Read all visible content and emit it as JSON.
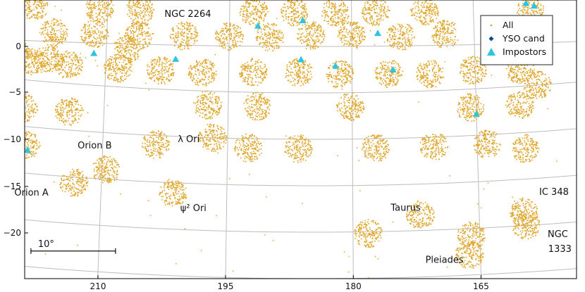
{
  "chart_data": {
    "type": "scatter",
    "title": "",
    "xlabel": "",
    "ylabel": "",
    "xlim": [
      222,
      154
    ],
    "ylim": [
      -25,
      4.5
    ],
    "x_reversed": true,
    "grid": true,
    "x_ticks": [
      {
        "value": 210,
        "label": "210"
      },
      {
        "value": 195,
        "label": "195"
      },
      {
        "value": 180,
        "label": "180"
      },
      {
        "value": 165,
        "label": "165"
      }
    ],
    "y_ticks": [
      {
        "value": 0,
        "label": "0"
      },
      {
        "value": -5,
        "label": "−5"
      },
      {
        "value": -10,
        "label": "−10"
      },
      {
        "value": -15,
        "label": "−15"
      },
      {
        "value": -20,
        "label": "−20"
      }
    ],
    "legend": {
      "position": "top-right",
      "entries": [
        {
          "label": "All",
          "marker": "dot",
          "color": "#e0a82e"
        },
        {
          "label": "YSO cand",
          "marker": "diamond",
          "color": "#0a4a86"
        },
        {
          "label": "Impostors",
          "marker": "triangle",
          "color": "#2ec4e0"
        }
      ]
    },
    "colors": {
      "all": "#e0a82e",
      "yso": "#0a4a86",
      "impostor": "#2ec4e0",
      "grid": "#bdbdbd"
    },
    "fields": [
      {
        "x": 219,
        "y": 3.7
      },
      {
        "x": 211,
        "y": 3.7
      },
      {
        "x": 206,
        "y": 3.7
      },
      {
        "x": 192,
        "y": 3.7
      },
      {
        "x": 187,
        "y": 3.7
      },
      {
        "x": 182,
        "y": 3.7
      },
      {
        "x": 177,
        "y": 3.7
      },
      {
        "x": 171,
        "y": 3.7
      },
      {
        "x": 158,
        "y": 3.7
      },
      {
        "x": 216.5,
        "y": 1.0
      },
      {
        "x": 211.5,
        "y": 1.0
      },
      {
        "x": 206,
        "y": 1.0
      },
      {
        "x": 200.5,
        "y": 1.0
      },
      {
        "x": 195,
        "y": 1.0
      },
      {
        "x": 190,
        "y": 1.0
      },
      {
        "x": 185,
        "y": 1.2
      },
      {
        "x": 180,
        "y": 1.2
      },
      {
        "x": 174,
        "y": 1.0
      },
      {
        "x": 168.5,
        "y": 1.2
      },
      {
        "x": 162.5,
        "y": 1.0
      },
      {
        "x": 221,
        "y": -1.5
      },
      {
        "x": 217,
        "y": -1.8
      },
      {
        "x": 207.5,
        "y": -0.6
      },
      {
        "x": 219,
        "y": -3.0
      },
      {
        "x": 214.5,
        "y": -3.0
      },
      {
        "x": 208.5,
        "y": -3.0
      },
      {
        "x": 203.3,
        "y": -3.0
      },
      {
        "x": 198.2,
        "y": -3.0
      },
      {
        "x": 192,
        "y": -2.8
      },
      {
        "x": 186.5,
        "y": -2.8
      },
      {
        "x": 181.5,
        "y": -3.0
      },
      {
        "x": 175.5,
        "y": -3.0
      },
      {
        "x": 170.5,
        "y": -3.2
      },
      {
        "x": 165.3,
        "y": -3.0
      },
      {
        "x": 159.5,
        "y": -3.3
      },
      {
        "x": 157.5,
        "y": -5.0
      },
      {
        "x": 197.5,
        "y": -6.5
      },
      {
        "x": 191.5,
        "y": -6.5
      },
      {
        "x": 180.2,
        "y": -6.5
      },
      {
        "x": 165.7,
        "y": -7.0
      },
      {
        "x": 159.7,
        "y": -7.0
      },
      {
        "x": 219.7,
        "y": -8.0
      },
      {
        "x": 214.2,
        "y": -8.0
      },
      {
        "x": 203.6,
        "y": -11.0
      },
      {
        "x": 196.8,
        "y": -10.0
      },
      {
        "x": 192.5,
        "y": -11.0
      },
      {
        "x": 186.5,
        "y": -11.0
      },
      {
        "x": 177.2,
        "y": -11.0
      },
      {
        "x": 170.2,
        "y": -11.0
      },
      {
        "x": 163.8,
        "y": -11.0
      },
      {
        "x": 159.3,
        "y": -11.7
      },
      {
        "x": 219.2,
        "y": -12.0
      },
      {
        "x": 213.3,
        "y": -15.6
      },
      {
        "x": 209.5,
        "y": -14.0
      },
      {
        "x": 201.4,
        "y": -16.1
      },
      {
        "x": 172.0,
        "y": -18.3
      },
      {
        "x": 178.2,
        "y": -20.2
      },
      {
        "x": 166.0,
        "y": -20.8
      },
      {
        "x": 166.3,
        "y": -22.8
      },
      {
        "x": 159.7,
        "y": -18.5
      },
      {
        "x": 159.5,
        "y": -20.0
      }
    ],
    "regions": [
      {
        "name": "Orion A",
        "points": [
          [
            215.0,
            -19.4
          ],
          [
            213.0,
            -19.3
          ],
          [
            211.0,
            -19.1
          ],
          [
            209.0,
            -18.9
          ],
          [
            208.2,
            -18.7
          ],
          [
            207.2,
            -18.5
          ]
        ]
      },
      {
        "name": "Orion B",
        "points": [
          [
            206.0,
            -13.0
          ],
          [
            206.8,
            -14.0
          ],
          [
            207.5,
            -15.2
          ],
          [
            208.5,
            -16.2
          ],
          [
            209.0,
            -16.7
          ],
          [
            210.0,
            -17.8
          ],
          [
            210.6,
            -18.1
          ]
        ]
      },
      {
        "name": "NGC 2264",
        "points": [
          [
            204.0,
            3.2
          ],
          [
            203.5,
            3.6
          ]
        ]
      },
      {
        "name": "λ Ori",
        "points": [
          [
            197.5,
            -10.0
          ],
          [
            196.0,
            -10.5
          ],
          [
            195.0,
            -10.8
          ],
          [
            193.5,
            -10.5
          ],
          [
            192.0,
            -10.2
          ],
          [
            190.5,
            -9.8
          ]
        ]
      },
      {
        "name": "ψ² Ori",
        "points": [
          [
            201.3,
            -15.6
          ],
          [
            200.0,
            -16.0
          ],
          [
            199.0,
            -16.4
          ]
        ]
      },
      {
        "name": "Taurus",
        "points": [
          [
            177.0,
            -19.5
          ],
          [
            178.0,
            -20.2
          ],
          [
            168.5,
            -17.6
          ]
        ]
      },
      {
        "name": "Pleiades",
        "points": [
          [
            166.5,
            -21.0
          ],
          [
            165.8,
            -22.0
          ],
          [
            165.0,
            -22.8
          ],
          [
            164.5,
            -22.0
          ]
        ]
      },
      {
        "name": "IC 348",
        "points": [
          [
            160.0,
            -16.5
          ],
          [
            159.6,
            -17.5
          ],
          [
            159.4,
            -18.0
          ]
        ]
      },
      {
        "name": "NGC 1333",
        "points": [
          [
            159.4,
            -19.3
          ],
          [
            158.7,
            -19.8
          ],
          [
            158.2,
            -20.3
          ],
          [
            159.8,
            -20.6
          ]
        ]
      }
    ],
    "impostors": [
      {
        "x": 158.5,
        "y": 4.3
      },
      {
        "x": 157.5,
        "y": 4.0
      },
      {
        "x": 186,
        "y": 2.8
      },
      {
        "x": 191.5,
        "y": 2.2
      },
      {
        "x": 176.8,
        "y": 1.4
      },
      {
        "x": 211.5,
        "y": -1.1
      },
      {
        "x": 201.5,
        "y": -1.5
      },
      {
        "x": 186.2,
        "y": -1.4
      },
      {
        "x": 182.0,
        "y": -2.1
      },
      {
        "x": 175.0,
        "y": -2.6
      },
      {
        "x": 165.0,
        "y": -7.7
      },
      {
        "x": 219.0,
        "y": -12.5
      }
    ],
    "annotations": [
      {
        "text": "NGC 2264",
        "x": 203.0,
        "y": 3.0
      },
      {
        "text": "Orion B",
        "x": 213.0,
        "y": -11.9
      },
      {
        "text": "λ Ori",
        "x": 201.0,
        "y": -10.6
      },
      {
        "text": "Orion A",
        "x": 220.3,
        "y": -17.5
      },
      {
        "text": "ψ² Ori",
        "x": 200.5,
        "y": -18.0
      },
      {
        "text": "Taurus",
        "x": 175.5,
        "y": -17.8
      },
      {
        "text": "IC 348",
        "x": 157.8,
        "y": -16.8
      },
      {
        "text": "Pleiades",
        "x": 171.5,
        "y": -23.5
      },
      {
        "text": "NGC",
        "x": 157.0,
        "y": -21.4
      },
      {
        "text": "1333",
        "x": 157.0,
        "y": -23.0
      }
    ],
    "scale_bar": {
      "label": "10°",
      "length_deg": 10,
      "x_start": 218.0,
      "y": -23.3
    }
  }
}
